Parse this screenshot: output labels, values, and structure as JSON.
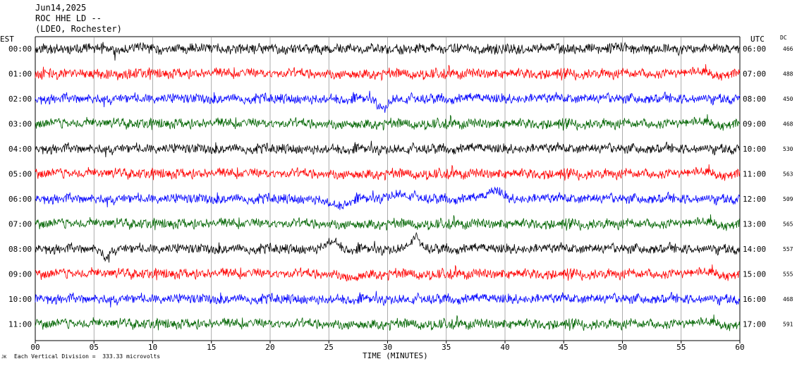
{
  "header": {
    "date": "Jun14,2025",
    "station": "ROC HHE LD --",
    "network": "(LDEO, Rochester)"
  },
  "footer": {
    "scale_note": "Each Vertical Division =  333.33 microvolts",
    "corner_mark": "JK"
  },
  "chart_data": {
    "type": "line",
    "title": "",
    "xlabel": "TIME (MINUTES)",
    "left_axis_label": "EST",
    "right_axis_label": "UTC",
    "dc_label": "DC",
    "xlim": [
      0,
      60
    ],
    "x_ticks": [
      "00",
      "05",
      "10",
      "15",
      "20",
      "25",
      "30",
      "35",
      "40",
      "45",
      "50",
      "55",
      "60"
    ],
    "grid": true,
    "colors": [
      "#000000",
      "#ff0000",
      "#0000ff",
      "#006400"
    ],
    "rows": [
      {
        "est": "00:00",
        "utc": "06:00",
        "dc": "466",
        "color": "#000000",
        "events": []
      },
      {
        "est": "01:00",
        "utc": "07:00",
        "dc": "488",
        "color": "#ff0000",
        "events": []
      },
      {
        "est": "02:00",
        "utc": "08:00",
        "dc": "450",
        "color": "#0000ff",
        "events": [
          {
            "t": 29.6,
            "amp": 14,
            "w": 0.5
          }
        ]
      },
      {
        "est": "03:00",
        "utc": "09:00",
        "dc": "468",
        "color": "#006400",
        "events": []
      },
      {
        "est": "04:00",
        "utc": "10:00",
        "dc": "530",
        "color": "#000000",
        "events": []
      },
      {
        "est": "05:00",
        "utc": "11:00",
        "dc": "563",
        "color": "#ff0000",
        "events": []
      },
      {
        "est": "06:00",
        "utc": "12:00",
        "dc": "509",
        "color": "#0000ff",
        "events": [
          {
            "t": 25.7,
            "amp": 10,
            "w": 0.9
          },
          {
            "t": 31.0,
            "amp": -7,
            "w": 1.5
          },
          {
            "t": 39.2,
            "amp": -12,
            "w": 0.8
          }
        ]
      },
      {
        "est": "07:00",
        "utc": "13:00",
        "dc": "565",
        "color": "#006400",
        "events": []
      },
      {
        "est": "08:00",
        "utc": "14:00",
        "dc": "557",
        "color": "#000000",
        "events": [
          {
            "t": 6.0,
            "amp": 12,
            "w": 0.4
          },
          {
            "t": 25.2,
            "amp": -11,
            "w": 0.8
          },
          {
            "t": 32.3,
            "amp": -15,
            "w": 0.7
          }
        ]
      },
      {
        "est": "09:00",
        "utc": "15:00",
        "dc": "555",
        "color": "#ff0000",
        "events": [
          {
            "t": 27.0,
            "amp": 6,
            "w": 0.6
          }
        ]
      },
      {
        "est": "10:00",
        "utc": "16:00",
        "dc": "468",
        "color": "#0000ff",
        "events": []
      },
      {
        "est": "11:00",
        "utc": "17:00",
        "dc": "591",
        "color": "#006400",
        "events": []
      }
    ]
  }
}
